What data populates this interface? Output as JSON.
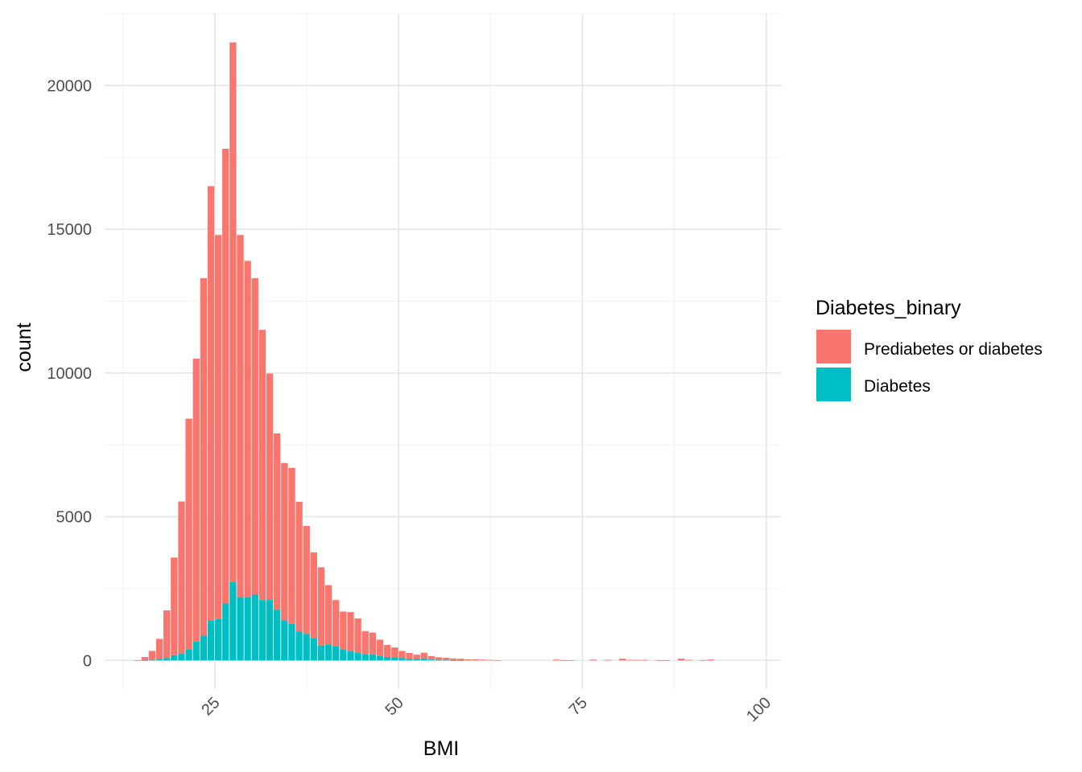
{
  "chart_data": {
    "type": "bar",
    "subtype": "stacked-histogram",
    "xlabel": "BMI",
    "ylabel": "count",
    "xlim": [
      10,
      102
    ],
    "ylim": [
      -1000,
      22500
    ],
    "x_ticks": [
      25,
      50,
      75,
      100
    ],
    "x_tick_labels": [
      "25",
      "50",
      "75",
      "100"
    ],
    "y_ticks": [
      0,
      5000,
      10000,
      15000,
      20000
    ],
    "y_tick_labels": [
      "0",
      "5000",
      "10000",
      "15000",
      "20000"
    ],
    "grid": true,
    "legend": {
      "title": "Diabetes_binary",
      "placement": "right",
      "entries": [
        {
          "label": "Prediabetes or diabetes",
          "color": "#F8766D"
        },
        {
          "label": "Diabetes",
          "color": "#00BFC4"
        }
      ]
    },
    "bins": {
      "start": 14,
      "width": 1,
      "totals": [
        10,
        120,
        330,
        750,
        1740,
        3580,
        5530,
        8410,
        10500,
        13300,
        16500,
        14800,
        17800,
        21500,
        14800,
        13900,
        13300,
        11500,
        9980,
        7900,
        6870,
        6700,
        5520,
        4680,
        3760,
        3240,
        2620,
        2100,
        1700,
        1680,
        1460,
        1020,
        970,
        720,
        540,
        450,
        330,
        260,
        200,
        270,
        150,
        110,
        90,
        70,
        60,
        40,
        40,
        30,
        20,
        10,
        0,
        0,
        0,
        0,
        0,
        0,
        0,
        30,
        10,
        10,
        0,
        0,
        30,
        0,
        20,
        0,
        60,
        20,
        20,
        20,
        0,
        10,
        10,
        0,
        60,
        20,
        0,
        10,
        30,
        0
      ],
      "diabetes": [
        0,
        10,
        20,
        50,
        80,
        180,
        240,
        380,
        660,
        860,
        1380,
        1440,
        1980,
        2720,
        2200,
        2200,
        2300,
        2100,
        2100,
        1760,
        1400,
        1270,
        1010,
        920,
        780,
        520,
        540,
        500,
        370,
        320,
        270,
        210,
        210,
        150,
        120,
        110,
        80,
        60,
        50,
        70,
        30,
        20,
        20,
        10,
        10,
        0,
        0,
        0,
        0,
        0,
        0,
        0,
        0,
        0,
        0,
        0,
        0,
        0,
        0,
        0,
        0,
        0,
        0,
        0,
        0,
        0,
        0,
        0,
        0,
        0,
        0,
        0,
        0,
        0,
        0,
        0,
        0,
        0,
        0,
        0
      ]
    },
    "series": [
      {
        "name": "Prediabetes or diabetes",
        "color": "#F8766D"
      },
      {
        "name": "Diabetes",
        "color": "#00BFC4"
      }
    ]
  }
}
